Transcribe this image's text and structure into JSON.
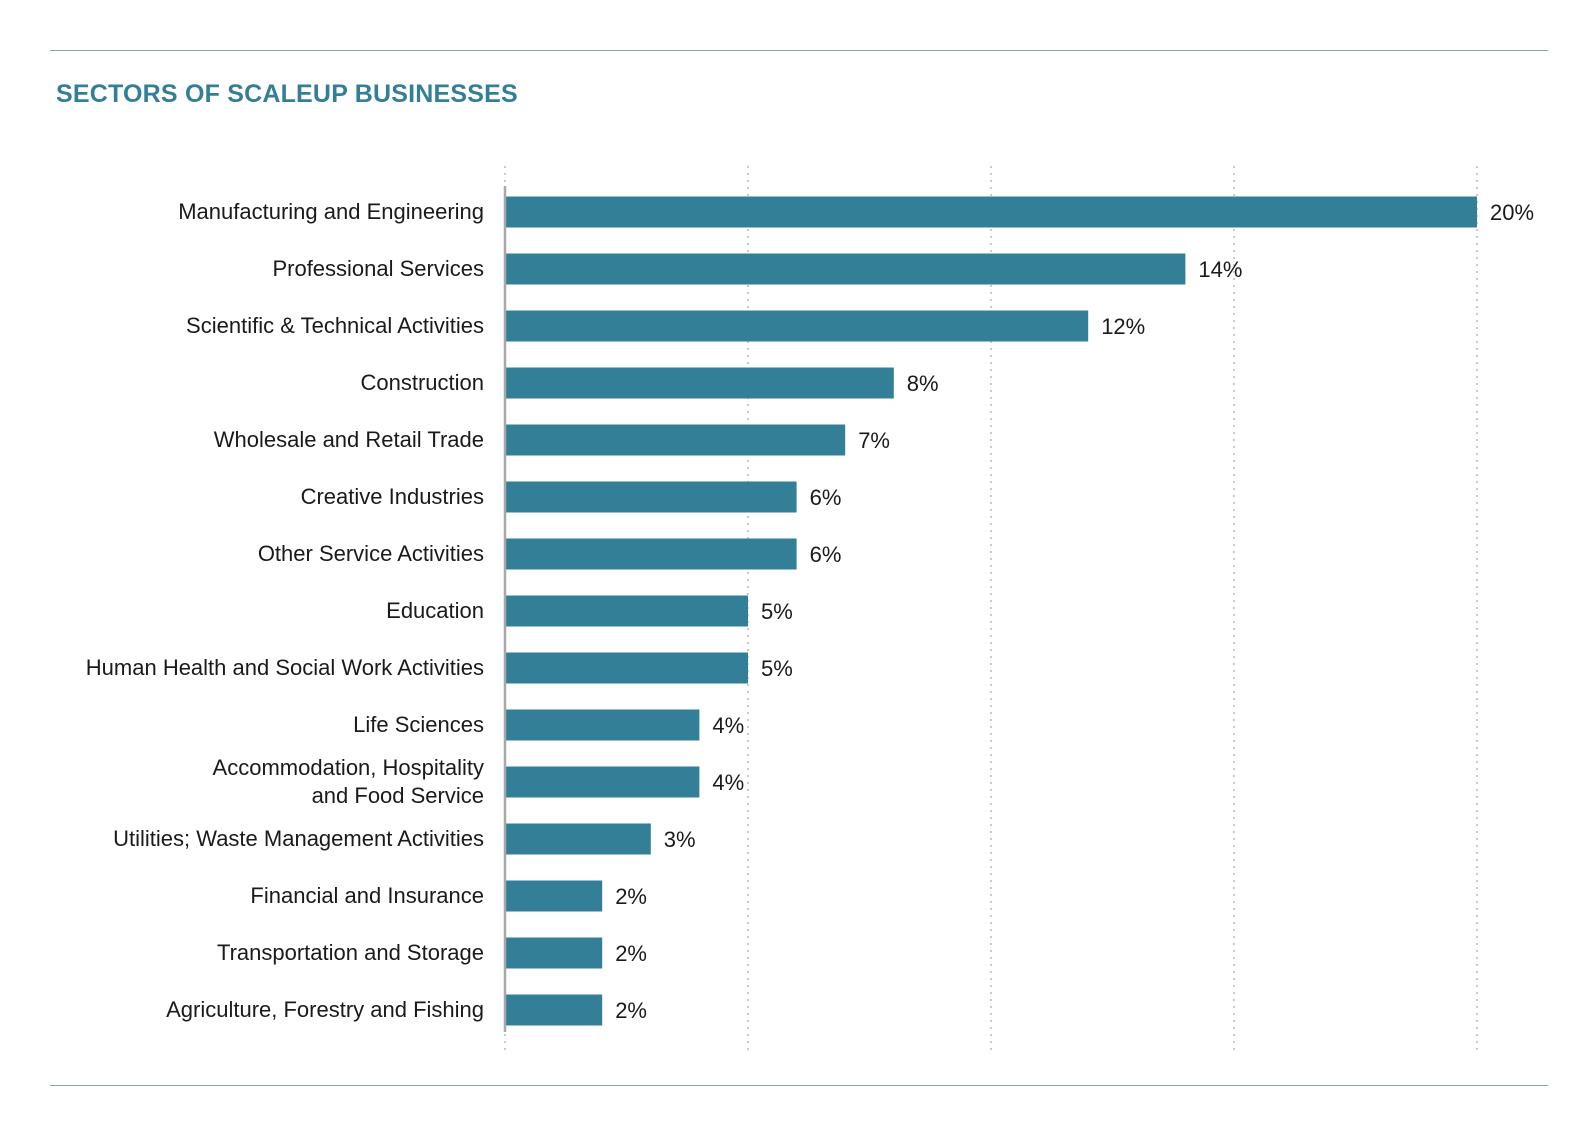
{
  "chart_data": {
    "type": "bar",
    "orientation": "horizontal",
    "title": "SECTORS OF SCALEUP BUSINESSES",
    "xlabel": "",
    "ylabel": "",
    "xlim": [
      0,
      20
    ],
    "grid": true,
    "value_suffix": "%",
    "bar_color": "#337f97",
    "title_color": "#337f97",
    "categories": [
      "Manufacturing and Engineering",
      "Professional Services",
      "Scientific & Technical Activities",
      "Construction",
      "Wholesale and Retail Trade",
      "Creative Industries",
      "Other Service Activities",
      "Education",
      "Human Health and Social Work Activities",
      "Life Sciences",
      "Accommodation, Hospitality\nand Food Service",
      "Utilities; Waste Management Activities",
      "Financial and Insurance",
      "Transportation and Storage",
      "Agriculture, Forestry and Fishing"
    ],
    "values": [
      20,
      14,
      12,
      8,
      7,
      6,
      6,
      5,
      5,
      4,
      4,
      3,
      2,
      2,
      2
    ],
    "value_labels": [
      "20%",
      "14%",
      "12%",
      "8%",
      "7%",
      "6%",
      "6%",
      "5%",
      "5%",
      "4%",
      "4%",
      "3%",
      "2%",
      "2%",
      "2%"
    ]
  }
}
